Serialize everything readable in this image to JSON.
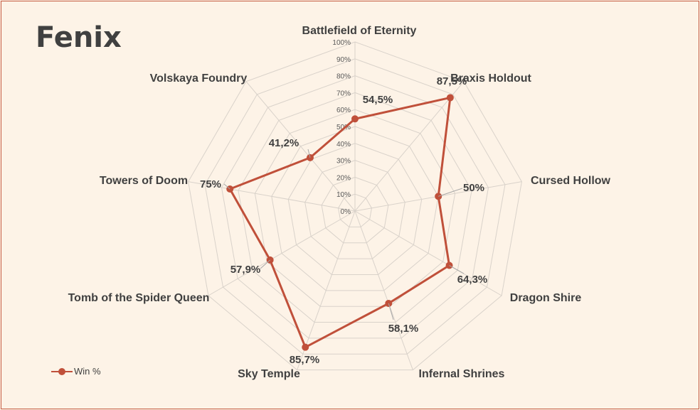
{
  "title": "Fenix",
  "chart_data": {
    "type": "radar",
    "title": "Fenix",
    "categories": [
      "Battlefield of Eternity",
      "Braxis Holdout",
      "Cursed Hollow",
      "Dragon Shire",
      "Infernal Shrines",
      "Sky Temple",
      "Tomb of the Spider Queen",
      "Towers of Doom",
      "Volskaya Foundry"
    ],
    "series": [
      {
        "name": "Win %",
        "values": [
          54.5,
          87.5,
          50,
          64.3,
          58.1,
          85.7,
          57.9,
          75,
          41.2
        ],
        "labels": [
          "54,5%",
          "87,5%",
          "50%",
          "64,3%",
          "58,1%",
          "85,7%",
          "57,9%",
          "75%",
          "41,2%"
        ],
        "color": "#c0503a"
      }
    ],
    "rlim": [
      0,
      100
    ],
    "ticks": [
      "0%",
      "10%",
      "20%",
      "30%",
      "40%",
      "50%",
      "60%",
      "70%",
      "80%",
      "90%",
      "100%"
    ],
    "legend": "bottom-left"
  },
  "colors": {
    "series": "#c0503a",
    "grid": "#d9d2ca",
    "border": "#c55a40",
    "background": "#fdf3e7"
  }
}
